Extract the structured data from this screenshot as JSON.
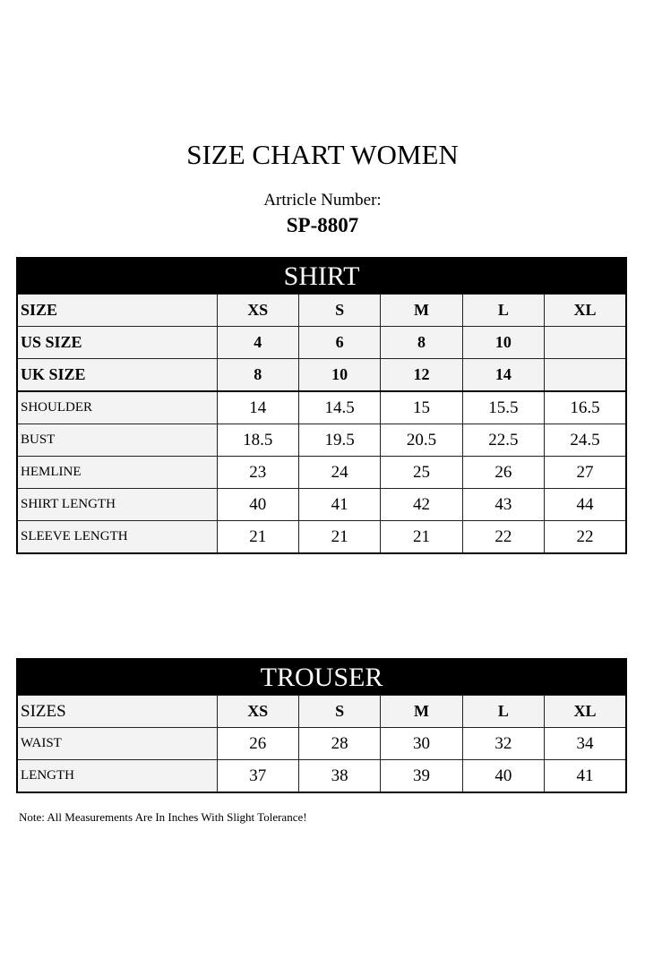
{
  "title": "SIZE CHART WOMEN",
  "article_label": "Artricle Number:",
  "article_number": "SP-8807",
  "shirt": {
    "heading": "SHIRT",
    "rows": [
      {
        "label": "SIZE",
        "values": [
          "XS",
          "S",
          "M",
          "L",
          "XL"
        ]
      },
      {
        "label": "US SIZE",
        "values": [
          "4",
          "6",
          "8",
          "10",
          ""
        ]
      },
      {
        "label": "UK SIZE",
        "values": [
          "8",
          "10",
          "12",
          "14",
          ""
        ]
      },
      {
        "label": "SHOULDER",
        "values": [
          "14",
          "14.5",
          "15",
          "15.5",
          "16.5"
        ]
      },
      {
        "label": "BUST",
        "values": [
          "18.5",
          "19.5",
          "20.5",
          "22.5",
          "24.5"
        ]
      },
      {
        "label": "HEMLINE",
        "values": [
          "23",
          "24",
          "25",
          "26",
          "27"
        ]
      },
      {
        "label": "SHIRT LENGTH",
        "values": [
          "40",
          "41",
          "42",
          "43",
          "44"
        ]
      },
      {
        "label": "SLEEVE LENGTH",
        "values": [
          "21",
          "21",
          "21",
          "22",
          "22"
        ]
      }
    ]
  },
  "trouser": {
    "heading": "TROUSER",
    "rows": [
      {
        "label": "SIZES",
        "values": [
          "XS",
          "S",
          "M",
          "L",
          "XL"
        ]
      },
      {
        "label": "WAIST",
        "values": [
          "26",
          "28",
          "30",
          "32",
          "34"
        ]
      },
      {
        "label": "LENGTH",
        "values": [
          "37",
          "38",
          "39",
          "40",
          "41"
        ]
      }
    ]
  },
  "note": "Note: All Measurements Are In Inches With Slight Tolerance!"
}
